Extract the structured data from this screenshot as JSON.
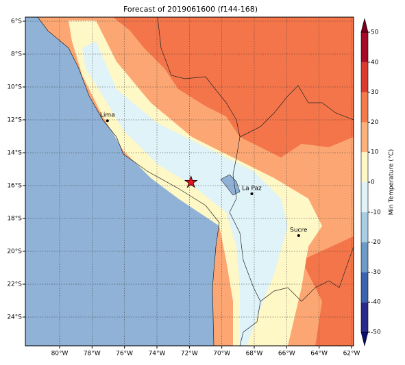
{
  "title": "Forecast of 2019061600 (f144-168)",
  "map": {
    "lon_ticks": [
      {
        "value": -80,
        "label": "80°W"
      },
      {
        "value": -78,
        "label": "78°W"
      },
      {
        "value": -76,
        "label": "76°W"
      },
      {
        "value": -74,
        "label": "74°W"
      },
      {
        "value": -72,
        "label": "72°W"
      },
      {
        "value": -70,
        "label": "70°W"
      },
      {
        "value": -68,
        "label": "68°W"
      },
      {
        "value": -66,
        "label": "66°W"
      },
      {
        "value": -64,
        "label": "64°W"
      },
      {
        "value": -62,
        "label": "62°W"
      }
    ],
    "lat_ticks": [
      {
        "value": -6,
        "label": "6°S"
      },
      {
        "value": -8,
        "label": "8°S"
      },
      {
        "value": -10,
        "label": "10°S"
      },
      {
        "value": -12,
        "label": "12°S"
      },
      {
        "value": -14,
        "label": "14°S"
      },
      {
        "value": -16,
        "label": "16°S"
      },
      {
        "value": -18,
        "label": "18°S"
      },
      {
        "value": -20,
        "label": "20°S"
      },
      {
        "value": -22,
        "label": "22°S"
      },
      {
        "value": -24,
        "label": "24°S"
      }
    ],
    "cities": [
      {
        "name": "Lima",
        "lon": -77.05,
        "lat": -12.05
      },
      {
        "name": "La Paz",
        "lon": -68.15,
        "lat": -16.5
      },
      {
        "name": "Sucre",
        "lon": -65.26,
        "lat": -19.04
      }
    ],
    "star": {
      "lon": -71.9,
      "lat": -15.8,
      "color": "#e8141c"
    }
  },
  "colorbar": {
    "label": "Min Temperature (°C)",
    "ticks": [
      -50,
      -40,
      -30,
      -20,
      -10,
      0,
      10,
      20,
      30,
      40,
      50
    ],
    "colors": [
      "#2a2a8c",
      "#3c63b0",
      "#6e9ac8",
      "#a9cde4",
      "#e0f3f8",
      "#fef7c6",
      "#fdb17a",
      "#f57b4a",
      "#dd3a2e",
      "#a60a26"
    ],
    "under_color": "#0d0d6e",
    "over_color": "#7a0021"
  }
}
